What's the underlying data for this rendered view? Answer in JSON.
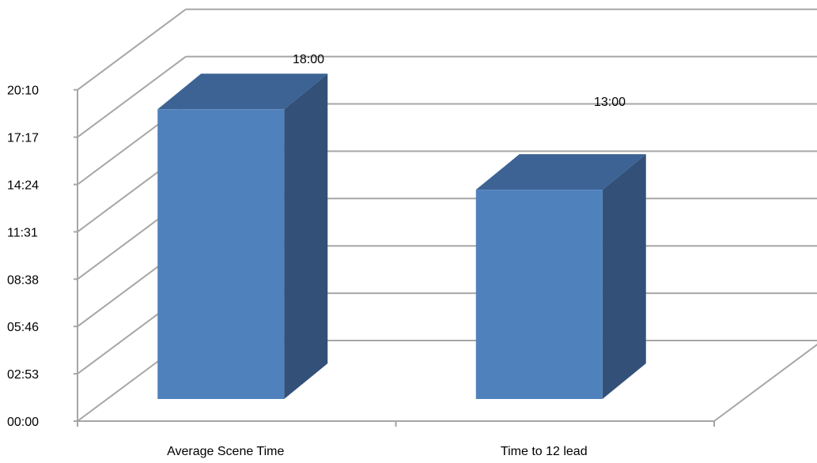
{
  "chart_data": {
    "type": "bar",
    "view": "3d",
    "categories": [
      "Average Scene Time",
      "Time to 12 lead"
    ],
    "values": [
      "18:00",
      "13:00"
    ],
    "values_minutes": [
      18,
      13
    ],
    "data_labels": [
      "18:00",
      "13:00"
    ],
    "y_ticks": [
      "00:00",
      "02:53",
      "05:46",
      "08:38",
      "11:31",
      "14:24",
      "17:17",
      "20:10"
    ],
    "ylim_minutes": [
      0,
      20.17
    ],
    "grid": true,
    "legend": "none",
    "colors": {
      "bar_front": "#4f81bd",
      "bar_top": "#3c6393",
      "bar_side": "#335178",
      "grid": "#a6a6a6"
    }
  }
}
